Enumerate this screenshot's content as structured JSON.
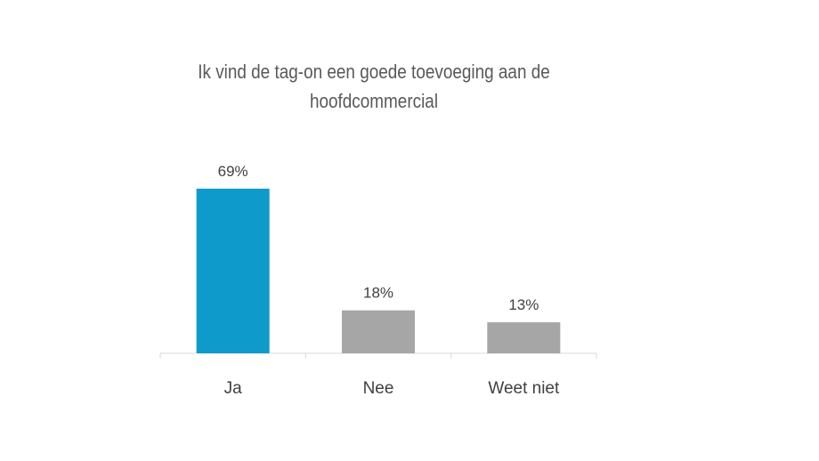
{
  "chart_data": {
    "type": "bar",
    "title": "Ik vind de tag-on een goede toevoeging aan de hoofdcommercial",
    "categories": [
      "Ja",
      "Nee",
      "Weet niet"
    ],
    "values": [
      69,
      18,
      13
    ],
    "data_labels": [
      "69%",
      "18%",
      "13%"
    ],
    "colors": [
      "#0E9BCB",
      "#A6A6A6",
      "#A6A6A6"
    ],
    "ylim": [
      0,
      100
    ],
    "grid": false,
    "legend": "none",
    "value_axis": "hidden"
  }
}
